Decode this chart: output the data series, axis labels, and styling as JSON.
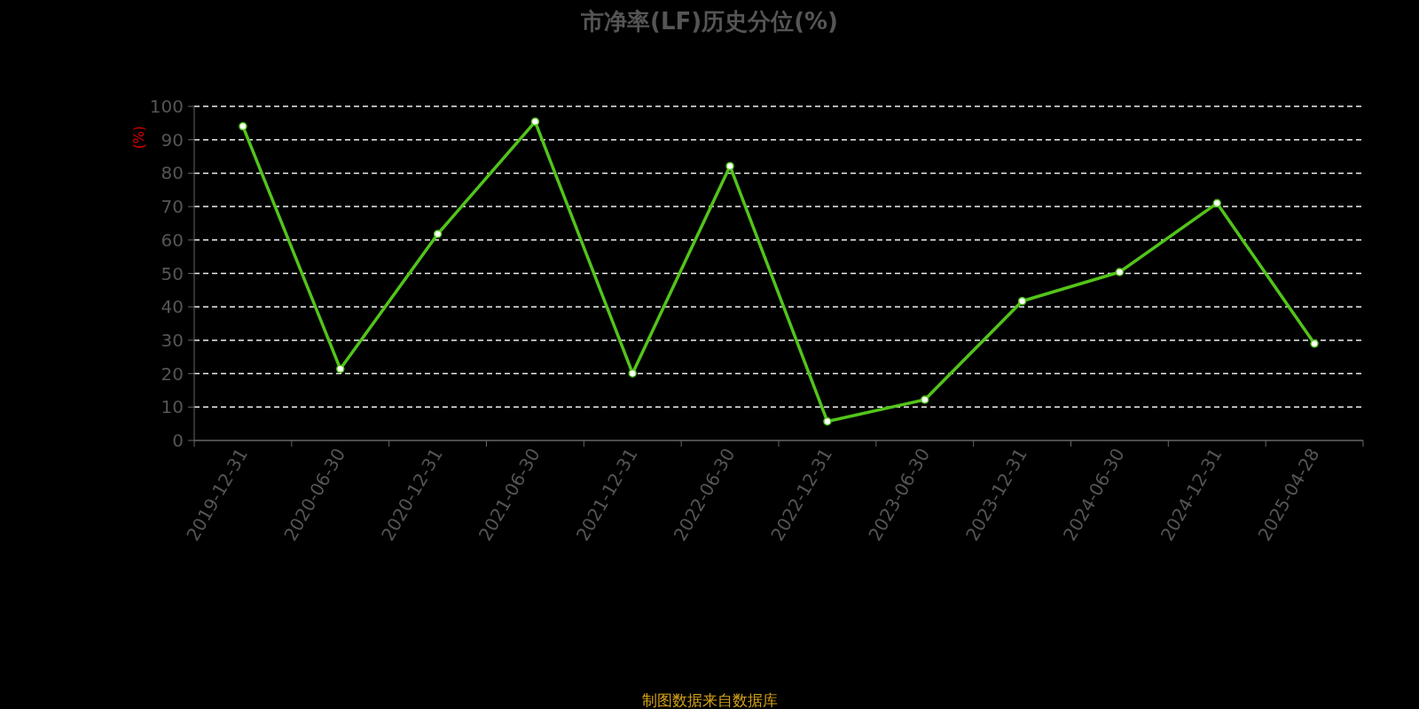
{
  "chart_data": {
    "type": "line",
    "title": "市净率(LF)历史分位(%)",
    "ylabel": "(%)",
    "annotations": [
      "制图数据来自数据库"
    ],
    "categories": [
      "2019-12-31",
      "2020-06-30",
      "2020-12-31",
      "2021-06-30",
      "2021-12-31",
      "2022-06-30",
      "2022-12-31",
      "2023-06-30",
      "2023-12-31",
      "2024-06-30",
      "2024-12-31",
      "2025-04-28"
    ],
    "series": [
      {
        "color": "#52c41a",
        "values": [
          94.0,
          21.4,
          61.8,
          95.4,
          20.1,
          82.1,
          5.7,
          12.2,
          41.7,
          50.4,
          71.0,
          29.0
        ]
      }
    ],
    "ylim": [
      0,
      100
    ],
    "yticks": [
      0,
      10,
      20,
      30,
      40,
      50,
      60,
      70,
      80,
      90,
      100
    ],
    "grid": "y",
    "marker": "circle",
    "line_style": "solid"
  }
}
